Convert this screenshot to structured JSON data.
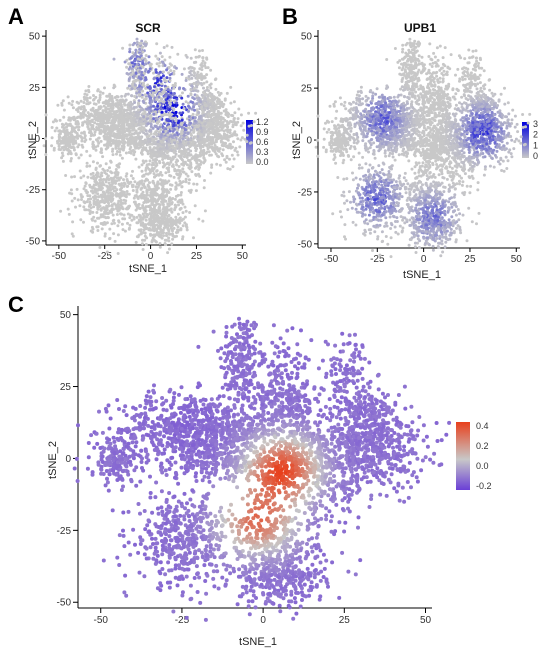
{
  "figure": {
    "panels": [
      {
        "id": "A",
        "letter": "A",
        "gene": "SCR"
      },
      {
        "id": "B",
        "letter": "B",
        "gene": "UPB1"
      },
      {
        "id": "C",
        "letter": "C",
        "gene": ""
      }
    ]
  },
  "chart_data": [
    {
      "panel": "A",
      "type": "scatter",
      "title": "SCR",
      "xlabel": "tSNE_1",
      "ylabel": "tSNE_2",
      "xlim": [
        -57,
        52
      ],
      "ylim": [
        -52,
        53
      ],
      "xticks": [
        -50,
        -25,
        0,
        25,
        50
      ],
      "yticks": [
        -50,
        -25,
        0,
        25,
        50
      ],
      "grid": false,
      "legend": {
        "placement": "right",
        "ticks": [
          "1.2",
          "0.9",
          "0.6",
          "0.3",
          "0.0"
        ],
        "min": 0,
        "max": 1.2,
        "colors": [
          "#c8c8c8",
          "#0000dd"
        ]
      },
      "expressing_clusters": [
        {
          "name": "cluster-top-left",
          "x": -7,
          "y": 37,
          "mean_expression": 0.45
        },
        {
          "name": "cluster-top-mid",
          "x": 5,
          "y": 26,
          "mean_expression": 0.8
        },
        {
          "name": "cluster-top-mid-right",
          "x": 12,
          "y": 14,
          "mean_expression": 1.0
        }
      ]
    },
    {
      "panel": "B",
      "type": "scatter",
      "title": "UPB1",
      "xlabel": "tSNE_1",
      "ylabel": "tSNE_2",
      "xlim": [
        -57,
        52
      ],
      "ylim": [
        -52,
        53
      ],
      "xticks": [
        -50,
        -25,
        0,
        25,
        50
      ],
      "yticks": [
        -50,
        -25,
        0,
        25,
        50
      ],
      "grid": false,
      "legend": {
        "placement": "right",
        "ticks": [
          "3",
          "2",
          "1",
          "0"
        ],
        "min": 0,
        "max": 3,
        "colors": [
          "#c8c8c8",
          "#0000dd"
        ]
      },
      "expressing_clusters": [
        {
          "name": "cluster-left",
          "x": -22,
          "y": 10,
          "mean_expression": 1.6
        },
        {
          "name": "cluster-right",
          "x": 32,
          "y": 4,
          "mean_expression": 2.0
        },
        {
          "name": "cluster-bottom-left",
          "x": -25,
          "y": -28,
          "mean_expression": 1.6
        },
        {
          "name": "cluster-bottom",
          "x": 5,
          "y": -37,
          "mean_expression": 1.3
        }
      ]
    },
    {
      "panel": "C",
      "type": "scatter",
      "title": "",
      "xlabel": "tSNE_1",
      "ylabel": "tSNE_2",
      "xlim": [
        -57,
        52
      ],
      "ylim": [
        -52,
        53
      ],
      "xticks": [
        -50,
        -25,
        0,
        25,
        50
      ],
      "yticks": [
        -50,
        -25,
        0,
        25,
        50
      ],
      "grid": false,
      "legend": {
        "placement": "right",
        "ticks": [
          "0.4",
          "0.2",
          "0.0",
          "-0.2"
        ],
        "min": -0.3,
        "max": 0.45,
        "colors": [
          "#6a3fd6",
          "#c8c8c8",
          "#e8401c"
        ]
      },
      "score_clusters": [
        {
          "name": "cluster-center",
          "x": 6,
          "y": -4,
          "score": 0.42
        },
        {
          "name": "cluster-center-lower",
          "x": -2,
          "y": -22,
          "score": 0.3
        },
        {
          "name": "cluster-left",
          "x": -25,
          "y": 12,
          "score": -0.2
        },
        {
          "name": "cluster-right",
          "x": 32,
          "y": 5,
          "score": -0.18
        }
      ]
    }
  ]
}
